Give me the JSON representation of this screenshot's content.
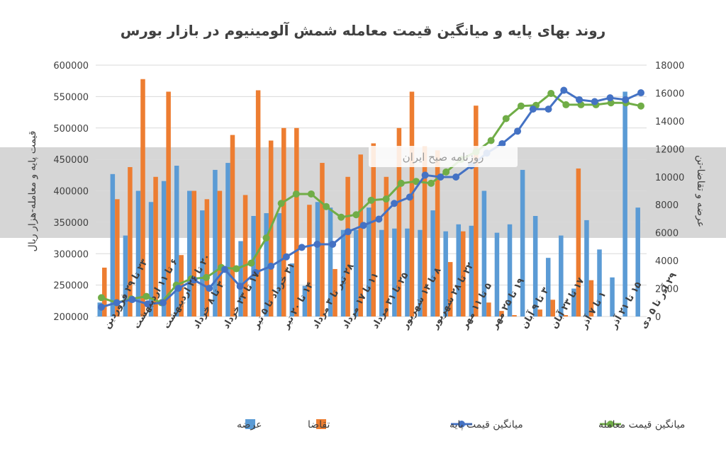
{
  "chart_data": {
    "type": "bar+line",
    "title": "روند بهای پایه و میانگین قیمت معامله شمش آلومینیوم در بازار بورس",
    "ylabel_left": "قیمت پایه و معامله-هزار ریال",
    "ylabel_right": "عرضه و تقاضا-تن",
    "yleft_range": [
      200000,
      600000
    ],
    "yleft_ticks": [
      "200000",
      "250000",
      "300000",
      "350000",
      "400000",
      "450000",
      "500000",
      "550000",
      "600000"
    ],
    "yright_range": [
      0,
      18000
    ],
    "yright_ticks": [
      "0",
      "2000",
      "4000",
      "6000",
      "8000",
      "10000",
      "12000",
      "14000",
      "16000",
      "18000"
    ],
    "x_tick_labels": [
      "۲۳ تا ۲۹ فروردین",
      "۶ تا ۱۱ اردیبهشت",
      "۲۰ تا ۲۶ اردیبهشت",
      "۳ تا ۸ خرداد",
      "۱۷ تا ۲۳ خرداد",
      "۳۱ خرداد تا ۵ تیر",
      "۱۴ تا ۲۰ تیر",
      "۲۸ تیر تا ۳ مرداد",
      "۱۱ تا ۱۷ مرداد",
      "۲۵ تا ۳۱ مرداد",
      "۸ تا ۱۴ شهریور",
      "۲۲ تا ۲۸ شهریور",
      "۵ تا ۱۱ مهر",
      "۱۹ تا ۲۵ مهر",
      "۳ تا ۹ آبان",
      "۱۷ تا ۲۳ آبان",
      "۱ تا ۷ آذر",
      "۱۵ تا ۲۱ آذر",
      "۲۹ آذر تا ۵ دی"
    ],
    "series": [
      {
        "name": "عرضه",
        "kind": "bar",
        "axis": "right",
        "color": "#5B9BD5",
        "values": [
          1000,
          10200,
          5800,
          9000,
          8200,
          9700,
          10800,
          9000,
          7600,
          10500,
          11000,
          5400,
          7200,
          7400,
          7400,
          3800,
          2200,
          8200,
          7800,
          6200,
          6200,
          7800,
          6200,
          6300,
          6300,
          6200,
          7600,
          6100,
          6600,
          6500,
          9000,
          6000,
          6600,
          10500,
          7200,
          4200,
          5800,
          2000,
          6900,
          4800,
          2800,
          16100,
          7800
        ]
      },
      {
        "name": "تقاضا",
        "kind": "bar",
        "axis": "right",
        "color": "#ED7D31",
        "values": [
          3500,
          8400,
          10700,
          17000,
          10000,
          16100,
          4400,
          9000,
          8400,
          9000,
          13000,
          8700,
          16200,
          12600,
          13500,
          13500,
          8000,
          11000,
          3400,
          10000,
          11600,
          12400,
          10000,
          13500,
          16100,
          12200,
          11900,
          3900,
          6100,
          15100,
          1000,
          400,
          100,
          0,
          500,
          1200,
          100,
          10600,
          2600
        ]
      },
      {
        "name": "میانگین قیمت پایه",
        "kind": "line",
        "axis": "left",
        "color": "#4472C4",
        "values": [
          215000,
          222000,
          227000,
          220000,
          222000,
          245000,
          258000,
          245000,
          275000,
          248000,
          270000,
          280000,
          295000,
          310000,
          315000,
          315000,
          335000,
          345000,
          355000,
          380000,
          390000,
          425000,
          422000,
          422000,
          440000,
          460000,
          475000,
          495000,
          530000,
          530000,
          560000,
          545000,
          542000,
          548000,
          545000,
          556000
        ]
      },
      {
        "name": "میانگین قیمت معامله",
        "kind": "line",
        "axis": "left",
        "color": "#70AD47",
        "values": [
          230000,
          222000,
          228000,
          232000,
          222000,
          250000,
          260000,
          262000,
          278000,
          276000,
          285000,
          325000,
          380000,
          395000,
          395000,
          375000,
          358000,
          362000,
          385000,
          387000,
          412000,
          415000,
          412000,
          430000,
          450000,
          462000,
          480000,
          515000,
          535000,
          536000,
          555000,
          537000,
          537000,
          537000,
          540000,
          540000,
          535000
        ]
      }
    ],
    "legend_position": "bottom",
    "grid": "horizontal"
  },
  "watermark": {
    "banner_text": "روزنامه صبح ایران"
  }
}
